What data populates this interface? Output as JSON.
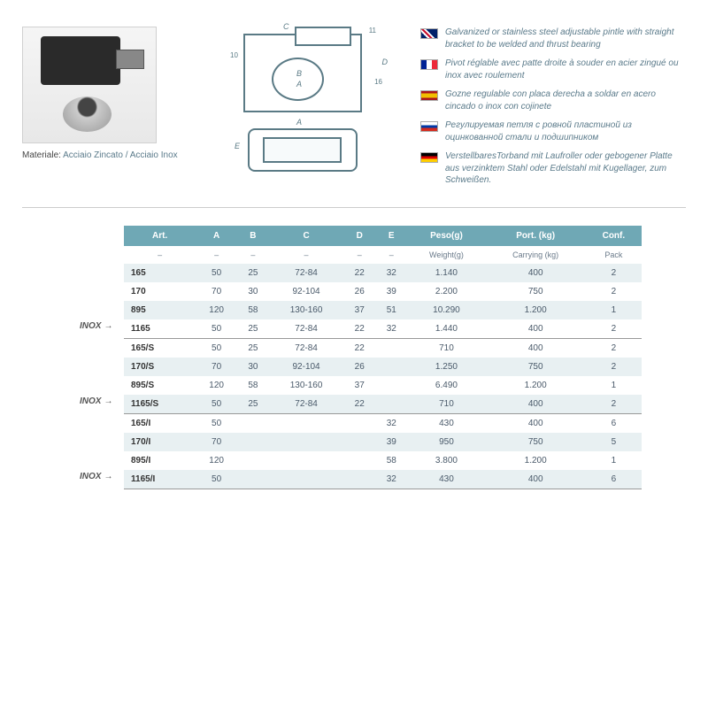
{
  "material": {
    "label": "Materiale:",
    "value": "Acciaio Zincato / Acciaio Inox"
  },
  "diagram_labels": {
    "A": "A",
    "B": "B",
    "C": "C",
    "D": "D",
    "E": "E",
    "d10": "10",
    "d16": "16",
    "d11": "11"
  },
  "descriptions": [
    {
      "flag": "uk",
      "text": "Galvanized or stainless steel adjustable pintle with straight bracket to be welded and thrust bearing"
    },
    {
      "flag": "fr",
      "text": "Pivot réglable avec patte droite à souder en acier zingué ou inox avec roulement"
    },
    {
      "flag": "es",
      "text": "Gozne regulable con placa derecha a soldar en acero cincado o inox con cojinete"
    },
    {
      "flag": "ru",
      "text": "Регулируемая петля с ровной пластиной из оцинкованной стали и подшипником"
    },
    {
      "flag": "de",
      "text": "VerstellbaresTorband mit Laufroller oder  gebogener Platte aus verzinktem Stahl oder Edelstahl mit Kugellager, zum Schweißen."
    }
  ],
  "headers": [
    "Art.",
    "A",
    "B",
    "C",
    "D",
    "E",
    "Peso(g)",
    "Port. (kg)",
    "Conf."
  ],
  "subheaders": [
    "–",
    "–",
    "–",
    "–",
    "–",
    "–",
    "Weight(g)",
    "Carrying (kg)",
    "Pack"
  ],
  "inox_tag": "INOX",
  "rows": [
    {
      "art": "165",
      "A": "50",
      "B": "25",
      "C": "72-84",
      "D": "22",
      "E": "32",
      "peso": "1.140",
      "port": "400",
      "conf": "2",
      "tint": true
    },
    {
      "art": "170",
      "A": "70",
      "B": "30",
      "C": "92-104",
      "D": "26",
      "E": "39",
      "peso": "2.200",
      "port": "750",
      "conf": "2",
      "tint": false
    },
    {
      "art": "895",
      "A": "120",
      "B": "58",
      "C": "130-160",
      "D": "37",
      "E": "51",
      "peso": "10.290",
      "port": "1.200",
      "conf": "1",
      "tint": true
    },
    {
      "art": "1165",
      "A": "50",
      "B": "25",
      "C": "72-84",
      "D": "22",
      "E": "32",
      "peso": "1.440",
      "port": "400",
      "conf": "2",
      "tint": false,
      "inox": true,
      "brd": true
    },
    {
      "art": "165/S",
      "A": "50",
      "B": "25",
      "C": "72-84",
      "D": "22",
      "E": "",
      "peso": "710",
      "port": "400",
      "conf": "2",
      "tint": false
    },
    {
      "art": "170/S",
      "A": "70",
      "B": "30",
      "C": "92-104",
      "D": "26",
      "E": "",
      "peso": "1.250",
      "port": "750",
      "conf": "2",
      "tint": true
    },
    {
      "art": "895/S",
      "A": "120",
      "B": "58",
      "C": "130-160",
      "D": "37",
      "E": "",
      "peso": "6.490",
      "port": "1.200",
      "conf": "1",
      "tint": false
    },
    {
      "art": "1165/S",
      "A": "50",
      "B": "25",
      "C": "72-84",
      "D": "22",
      "E": "",
      "peso": "710",
      "port": "400",
      "conf": "2",
      "tint": true,
      "inox": true,
      "brd": true
    },
    {
      "art": "165/I",
      "A": "50",
      "B": "",
      "C": "",
      "D": "",
      "E": "32",
      "peso": "430",
      "port": "400",
      "conf": "6",
      "tint": false
    },
    {
      "art": "170/I",
      "A": "70",
      "B": "",
      "C": "",
      "D": "",
      "E": "39",
      "peso": "950",
      "port": "750",
      "conf": "5",
      "tint": true
    },
    {
      "art": "895/I",
      "A": "120",
      "B": "",
      "C": "",
      "D": "",
      "E": "58",
      "peso": "3.800",
      "port": "1.200",
      "conf": "1",
      "tint": false
    },
    {
      "art": "1165/I",
      "A": "50",
      "B": "",
      "C": "",
      "D": "",
      "E": "32",
      "peso": "430",
      "port": "400",
      "conf": "6",
      "tint": true,
      "inox": true,
      "brd": true
    }
  ]
}
